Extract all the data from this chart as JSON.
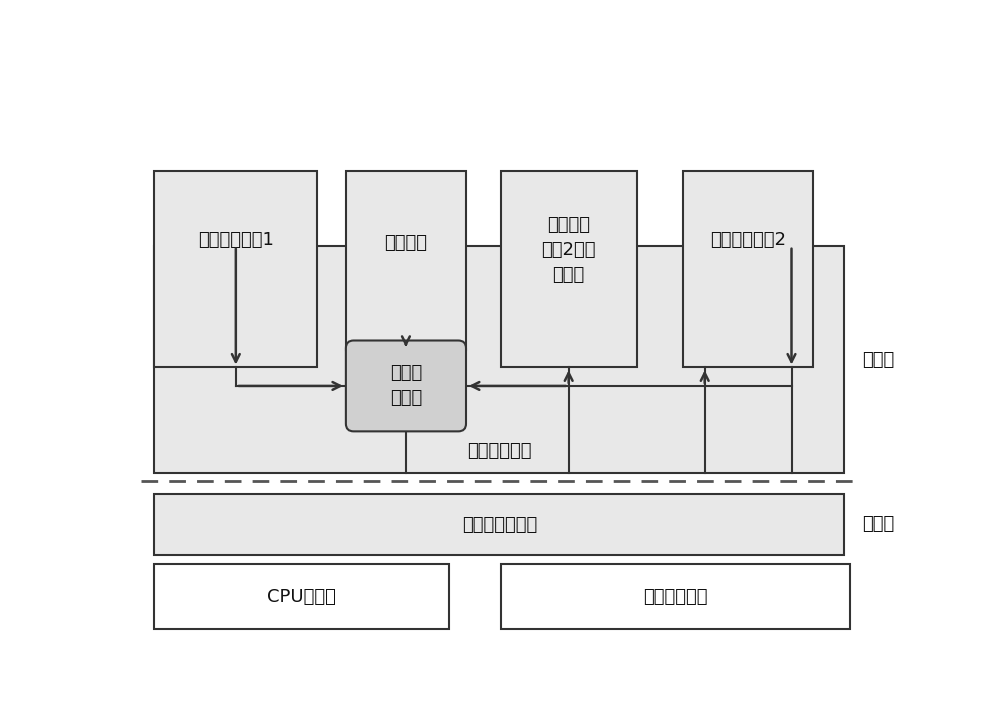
{
  "bg_color": "#ffffff",
  "fc_dotted": "#e8e8e8",
  "fc_white": "#ffffff",
  "fc_rss": "#cccccc",
  "edge_color": "#333333",
  "dash_color": "#555555",
  "arrow_color": "#333333",
  "text_color": "#111111",
  "label_user": "用户态",
  "label_kernel": "内核态",
  "label_resource_mgr": "资源管理框架",
  "label_android1": "安卓操作系统1",
  "label_android2": "安卓操作系统2",
  "label_shared_driver": "共享驱动",
  "label_dedicated_driver": "安卓操作\n系统2的专\n用驱动",
  "label_resource_svc": "资源共\n享服务",
  "label_kernel_module": "高保证内核模块",
  "label_cpu": "CPU、内存",
  "label_hardware": "其它硬件设备",
  "font_size": 13,
  "font_size_small": 13
}
